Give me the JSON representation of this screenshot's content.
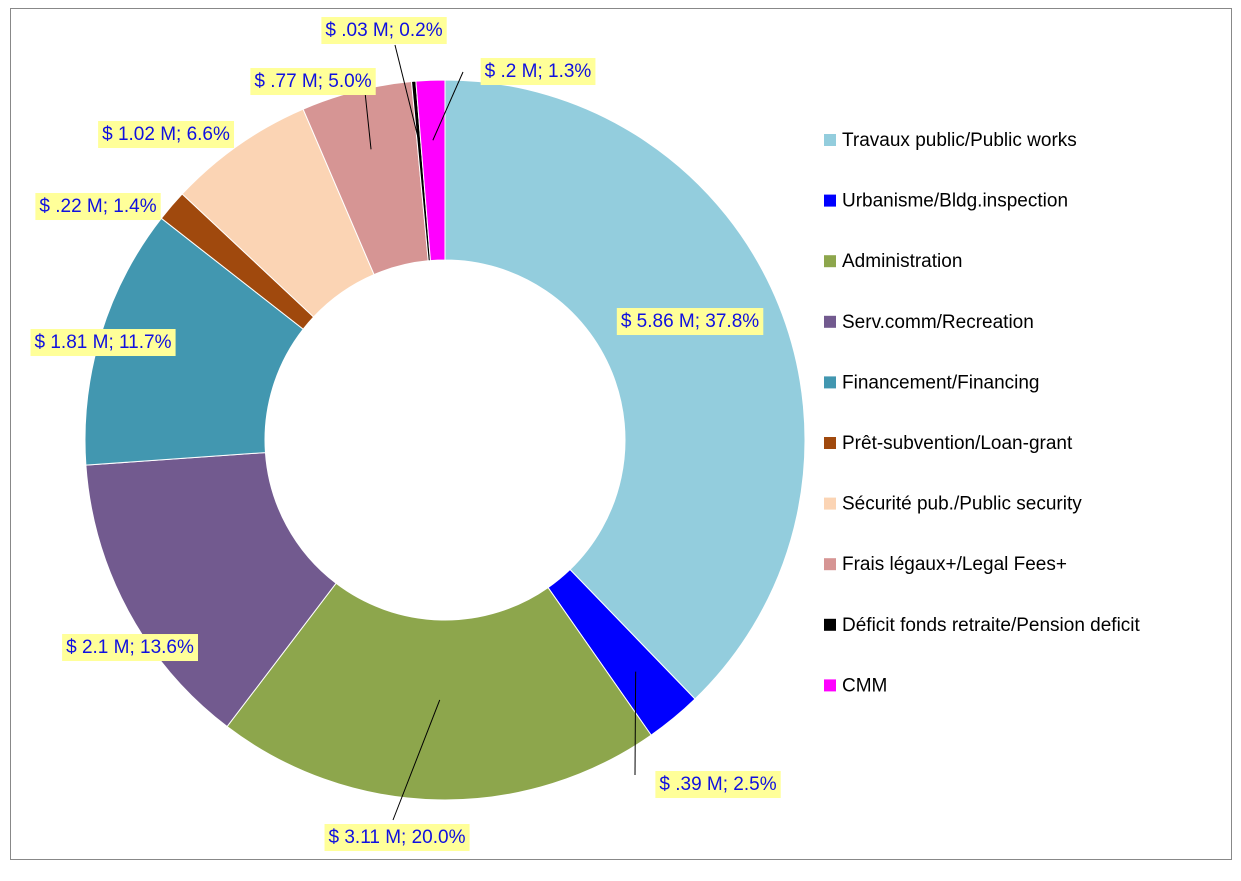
{
  "chart_data": {
    "type": "donut",
    "categories": [
      "Travaux public/Public works",
      "Urbanisme/Bldg.inspection",
      "Administration",
      "Serv.comm/Recreation",
      "Financement/Financing",
      "Prêt-subvention/Loan-grant",
      "Sécurité pub./Public security",
      "Frais légaux+/Legal Fees+",
      "Déficit fonds retraite/Pension deficit",
      "CMM"
    ],
    "values": [
      5.86,
      0.39,
      3.11,
      2.1,
      1.81,
      0.22,
      1.02,
      0.77,
      0.03,
      0.2
    ],
    "value_labels": [
      "$ 5.86 M; 37.8%",
      "$ .39 M; 2.5%",
      "$ 3.11 M; 20.0%",
      "$ 2.1 M; 13.6%",
      "$ 1.81 M; 11.7%",
      "$ .22 M; 1.4%",
      "$ 1.02 M; 6.6%",
      "$ .77 M; 5.0%",
      "$ .03 M; 0.2%",
      "$ .2 M; 1.3%"
    ],
    "colors": [
      "#93cddd",
      "#0000ff",
      "#8da64c",
      "#725a8f",
      "#4297b0",
      "#a0490d",
      "#fbd4b4",
      "#d69594",
      "#000000",
      "#ff00ff"
    ],
    "legend": "right"
  }
}
